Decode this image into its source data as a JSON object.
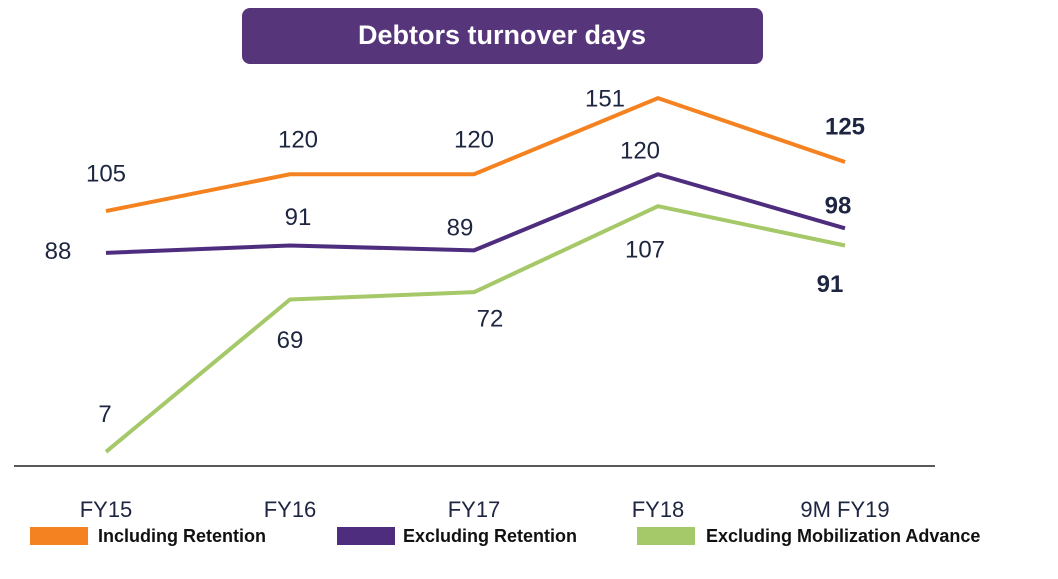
{
  "chart_data": {
    "type": "line",
    "title": "Debtors turnover days",
    "categories": [
      "FY15",
      "FY16",
      "FY17",
      "FY18",
      "9M FY19"
    ],
    "series": [
      {
        "name": "Including Retention",
        "color": "#f58220",
        "values": [
          105,
          120,
          120,
          151,
          125
        ]
      },
      {
        "name": "Excluding Retention",
        "color": "#4e2d7f",
        "values": [
          88,
          91,
          89,
          120,
          98
        ]
      },
      {
        "name": "Excluding Mobilization Advance",
        "color": "#a5c868",
        "values": [
          7,
          69,
          72,
          107,
          91
        ]
      }
    ],
    "ylim": [
      0,
      160
    ],
    "legend": "bottom"
  }
}
